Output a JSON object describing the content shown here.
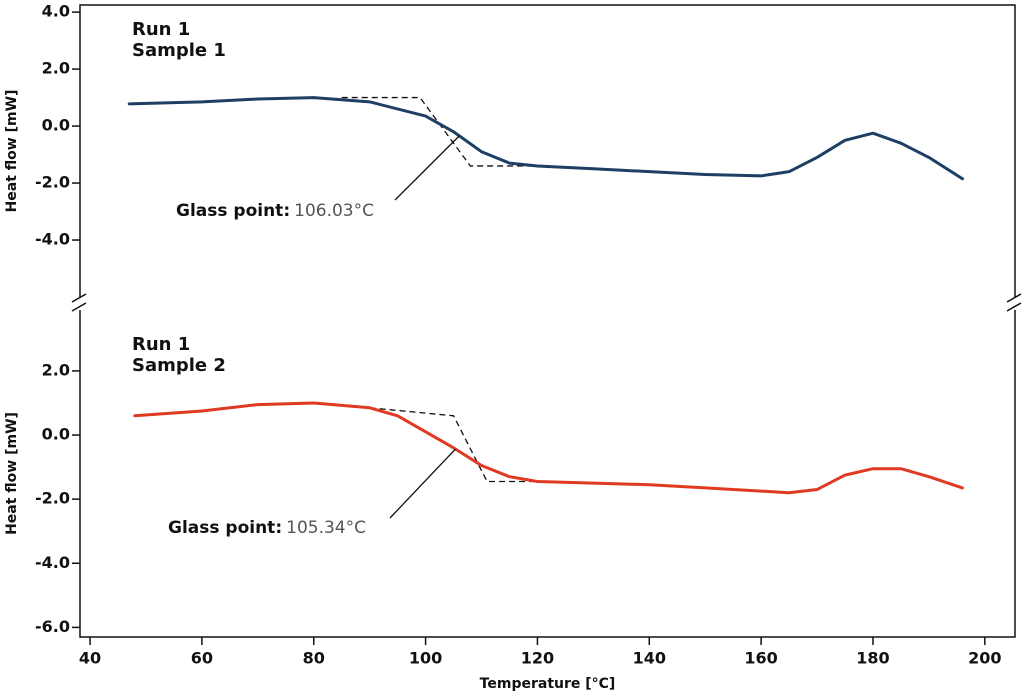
{
  "chart_data": [
    {
      "type": "line",
      "title": "Run 1",
      "subtitle": "Sample 1",
      "y_label": "Heat flow [mW]",
      "xlim": [
        38.2,
        205.4
      ],
      "ylim": [
        -6,
        4.25
      ],
      "yticks": [
        {
          "value": 4,
          "label": "4.0"
        },
        {
          "value": 2,
          "label": "2.0"
        },
        {
          "value": 0,
          "label": "0.0"
        },
        {
          "value": -2,
          "label": "-2.0"
        },
        {
          "value": -4,
          "label": "-4.0"
        }
      ],
      "series": [
        {
          "color": "#1d3f63",
          "x": [
            47,
            60,
            70,
            80,
            90,
            100,
            105,
            110,
            115,
            120,
            130,
            140,
            150,
            160,
            165,
            170,
            175,
            180,
            185,
            190,
            196
          ],
          "values": [
            0.78,
            0.85,
            0.95,
            1.0,
            0.85,
            0.35,
            -0.2,
            -0.9,
            -1.3,
            -1.4,
            -1.5,
            -1.6,
            -1.7,
            -1.75,
            -1.6,
            -1.1,
            -0.5,
            -0.25,
            -0.6,
            -1.1,
            -1.85
          ]
        }
      ],
      "tangent": {
        "x": [
          85,
          99,
          108,
          122
        ],
        "values": [
          1.0,
          1.0,
          -1.4,
          -1.4
        ]
      },
      "annotation": {
        "label": "Glass point:",
        "value": 106.03,
        "value_label": "106.03°C"
      }
    },
    {
      "type": "line",
      "title": "Run 1",
      "subtitle": "Sample 2",
      "y_label": "Heat flow [mW]",
      "x_label": "Temperature [°C]",
      "xlim": [
        38.2,
        205.4
      ],
      "ylim": [
        -6.3,
        3.9
      ],
      "xticks": [
        40,
        60,
        80,
        100,
        120,
        140,
        160,
        180,
        200
      ],
      "yticks": [
        {
          "value": 2,
          "label": "2.0"
        },
        {
          "value": 0,
          "label": "0.0"
        },
        {
          "value": -2,
          "label": "-2.0"
        },
        {
          "value": -4,
          "label": "-4.0"
        },
        {
          "value": -6,
          "label": "-6.0"
        }
      ],
      "series": [
        {
          "color": "#e03a23",
          "x": [
            48,
            60,
            70,
            80,
            90,
            95,
            100,
            105,
            110,
            115,
            120,
            130,
            140,
            150,
            160,
            165,
            170,
            175,
            180,
            185,
            190,
            196
          ],
          "values": [
            0.6,
            0.75,
            0.95,
            1.0,
            0.85,
            0.6,
            0.1,
            -0.4,
            -0.95,
            -1.3,
            -1.45,
            -1.5,
            -1.55,
            -1.65,
            -1.75,
            -1.8,
            -1.7,
            -1.25,
            -1.05,
            -1.05,
            -1.3,
            -1.65
          ]
        }
      ],
      "tangent": {
        "x": [
          90,
          105,
          111,
          120
        ],
        "values": [
          0.85,
          0.6,
          -1.45,
          -1.45
        ]
      },
      "annotation": {
        "label": "Glass point:",
        "value": 105.34,
        "value_label": "105.34°C"
      }
    }
  ]
}
